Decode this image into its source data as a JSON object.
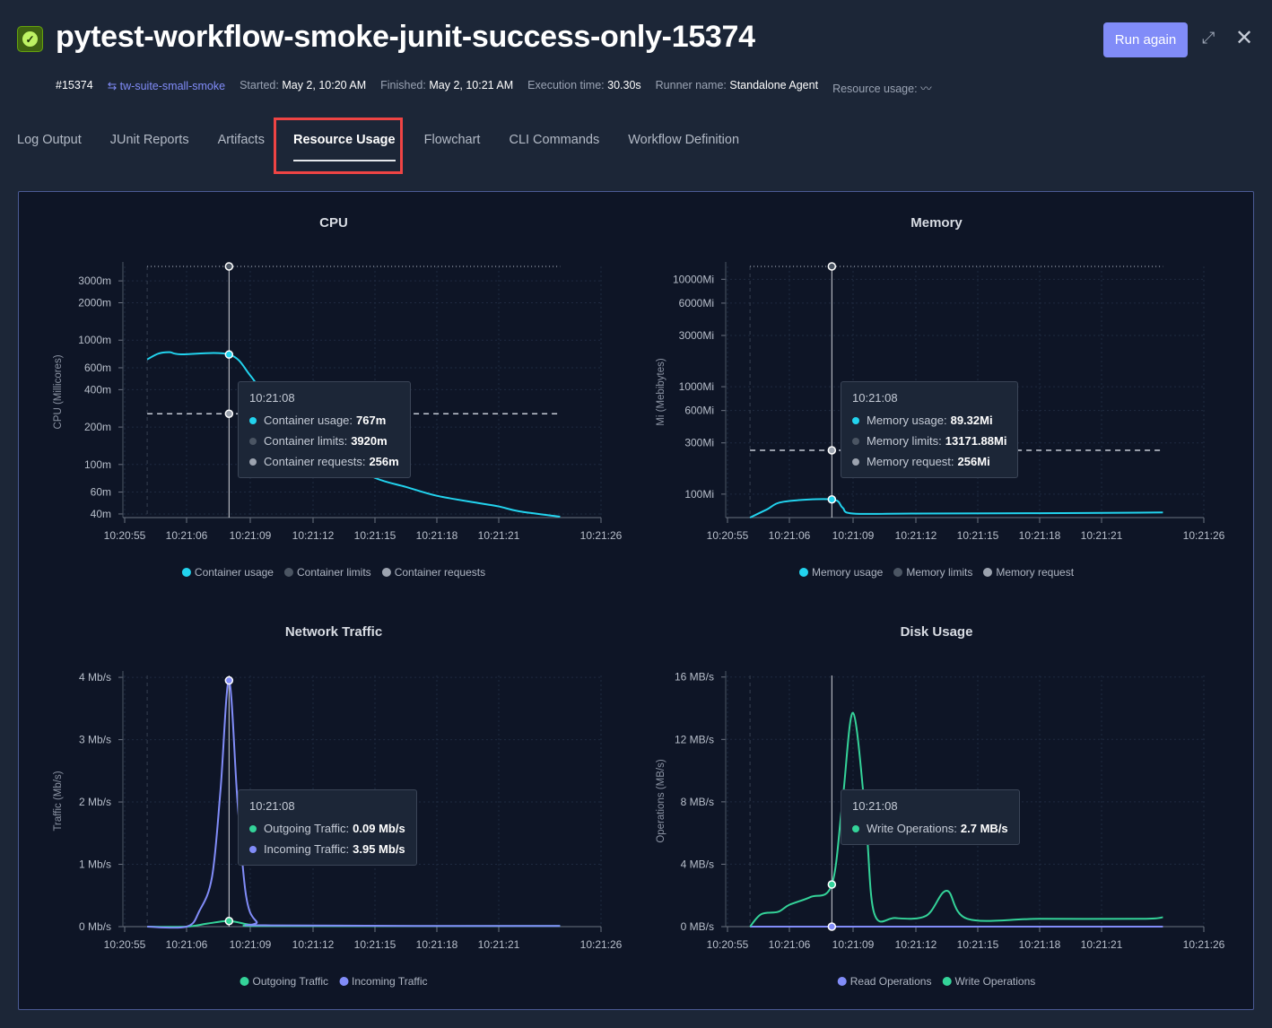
{
  "header": {
    "title": "pytest-workflow-smoke-junit-success-only-15374",
    "status_icon": "check-circle-icon",
    "run_again": "Run again",
    "run_number": "#15374",
    "workflow_link": "tw-suite-small-smoke",
    "started_label": "Started:",
    "started": "May 2, 10:20 AM",
    "finished_label": "Finished:",
    "finished": "May 2, 10:21 AM",
    "exec_label": "Execution time:",
    "exec": "30.30s",
    "runner_label": "Runner name:",
    "runner": "Standalone Agent",
    "resource_label": "Resource usage:"
  },
  "tabs": [
    {
      "label": "Log Output"
    },
    {
      "label": "JUnit Reports"
    },
    {
      "label": "Artifacts"
    },
    {
      "label": "Resource Usage",
      "active": true
    },
    {
      "label": "Flowchart"
    },
    {
      "label": "CLI Commands"
    },
    {
      "label": "Workflow Definition"
    }
  ],
  "colors": {
    "accent": "#818cf8",
    "cyan": "#22d3ee",
    "green": "#34d399",
    "highlight": "#ef4444"
  },
  "chart_data": [
    {
      "type": "line",
      "title": "CPU",
      "ylabel": "CPU (Millicores)",
      "yscale": "log",
      "ylim": [
        37.4,
        3920
      ],
      "yticks": [
        {
          "v": 3000,
          "l": "3000m"
        },
        {
          "v": 2000,
          "l": "2000m"
        },
        {
          "v": 1000,
          "l": "1000m"
        },
        {
          "v": 600,
          "l": "600m"
        },
        {
          "v": 400,
          "l": "400m"
        },
        {
          "v": 200,
          "l": "200m"
        },
        {
          "v": 100,
          "l": "100m"
        },
        {
          "v": 60,
          "l": "60m"
        },
        {
          "v": 40,
          "l": "40m"
        }
      ],
      "xticks": [
        "10:20:55",
        "10:21:06",
        "10:21:09",
        "10:21:12",
        "10:21:15",
        "10:21:18",
        "10:21:21",
        "10:21:26"
      ],
      "hover": "10:21:08",
      "series": [
        {
          "name": "Container usage",
          "color": "#22d3ee",
          "points": [
            [
              "10:20:59",
              700
            ],
            [
              "10:21:01",
              780
            ],
            [
              "10:21:03",
              800
            ],
            [
              "10:21:05",
              770
            ],
            [
              "10:21:08",
              767
            ],
            [
              "10:21:09",
              520
            ],
            [
              "10:21:10",
              300
            ],
            [
              "10:21:11",
              190
            ],
            [
              "10:21:13",
              115
            ],
            [
              "10:21:15",
              78
            ],
            [
              "10:21:16.5",
              66
            ],
            [
              "10:21:18",
              56
            ],
            [
              "10:21:20",
              49
            ],
            [
              "10:21:21",
              46
            ],
            [
              "10:21:22",
              42
            ],
            [
              "10:21:24",
              38
            ]
          ]
        }
      ],
      "refs": [
        {
          "name": "Container limits",
          "color": "#4b5563",
          "value": 3920,
          "style": "dotted"
        },
        {
          "name": "Container requests",
          "color": "#9ca3af",
          "value": 256,
          "style": "dashed"
        }
      ],
      "tooltip": {
        "time": "10:21:08",
        "rows": [
          {
            "label": "Container usage:",
            "value": "767m",
            "color": "#22d3ee"
          },
          {
            "label": "Container limits:",
            "value": "3920m",
            "color": "#4b5563"
          },
          {
            "label": "Container requests:",
            "value": "256m",
            "color": "#9ca3af"
          }
        ]
      }
    },
    {
      "type": "line",
      "title": "Memory",
      "ylabel": "Mi (Mebibytes)",
      "yscale": "log",
      "ylim": [
        60.5,
        13172
      ],
      "yticks": [
        {
          "v": 10000,
          "l": "10000Mi"
        },
        {
          "v": 6000,
          "l": "6000Mi"
        },
        {
          "v": 3000,
          "l": "3000Mi"
        },
        {
          "v": 1000,
          "l": "1000Mi"
        },
        {
          "v": 600,
          "l": "600Mi"
        },
        {
          "v": 300,
          "l": "300Mi"
        },
        {
          "v": 100,
          "l": "100Mi"
        }
      ],
      "xticks": [
        "10:20:55",
        "10:21:06",
        "10:21:09",
        "10:21:12",
        "10:21:15",
        "10:21:18",
        "10:21:21",
        "10:21:26"
      ],
      "hover": "10:21:08",
      "series": [
        {
          "name": "Memory usage",
          "color": "#22d3ee",
          "points": [
            [
              "10:20:59",
              60.5
            ],
            [
              "10:21:02",
              72
            ],
            [
              "10:21:05",
              85
            ],
            [
              "10:21:08",
              89.32
            ],
            [
              "10:21:08.5",
              75
            ],
            [
              "10:21:09",
              66
            ],
            [
              "10:21:12",
              66
            ],
            [
              "10:21:18",
              66.5
            ],
            [
              "10:21:24",
              67.5
            ]
          ]
        }
      ],
      "refs": [
        {
          "name": "Memory limits",
          "color": "#4b5563",
          "value": 13171.88,
          "style": "dotted"
        },
        {
          "name": "Memory request",
          "color": "#9ca3af",
          "value": 256,
          "style": "dashed"
        }
      ],
      "tooltip": {
        "time": "10:21:08",
        "rows": [
          {
            "label": "Memory usage:",
            "value": "89.32Mi",
            "color": "#22d3ee"
          },
          {
            "label": "Memory limits:",
            "value": "13171.88Mi",
            "color": "#4b5563"
          },
          {
            "label": "Memory request:",
            "value": "256Mi",
            "color": "#9ca3af"
          }
        ]
      }
    },
    {
      "type": "line",
      "title": "Network Traffic",
      "ylabel": "Traffic (Mb/s)",
      "yscale": "linear",
      "ylim": [
        0,
        4.03
      ],
      "yticks": [
        {
          "v": 4,
          "l": "4 Mb/s"
        },
        {
          "v": 3,
          "l": "3 Mb/s"
        },
        {
          "v": 2,
          "l": "2 Mb/s"
        },
        {
          "v": 1,
          "l": "1 Mb/s"
        },
        {
          "v": 0,
          "l": "0 Mb/s"
        }
      ],
      "xticks": [
        "10:20:55",
        "10:21:06",
        "10:21:09",
        "10:21:12",
        "10:21:15",
        "10:21:18",
        "10:21:21",
        "10:21:26"
      ],
      "hover": "10:21:08",
      "series": [
        {
          "name": "Outgoing Traffic",
          "color": "#34d399",
          "points": [
            [
              "10:20:59",
              0
            ],
            [
              "10:21:06",
              0
            ],
            [
              "10:21:07",
              0.05
            ],
            [
              "10:21:08",
              0.09
            ],
            [
              "10:21:09",
              0.03
            ],
            [
              "10:21:10",
              0.01
            ],
            [
              "10:21:24",
              0.01
            ]
          ]
        },
        {
          "name": "Incoming Traffic",
          "color": "#818cf8",
          "points": [
            [
              "10:20:59",
              0
            ],
            [
              "10:21:06",
              0
            ],
            [
              "10:21:06.6",
              0.25
            ],
            [
              "10:21:07.2",
              0.8
            ],
            [
              "10:21:07.6",
              2.2
            ],
            [
              "10:21:08",
              3.95
            ],
            [
              "10:21:08.4",
              2.0
            ],
            [
              "10:21:08.8",
              0.5
            ],
            [
              "10:21:09.3",
              0.08
            ],
            [
              "10:21:10",
              0.02
            ],
            [
              "10:21:24",
              0.01
            ]
          ]
        }
      ],
      "refs": [],
      "tooltip": {
        "time": "10:21:08",
        "rows": [
          {
            "label": "Outgoing Traffic:",
            "value": "0.09 Mb/s",
            "color": "#34d399"
          },
          {
            "label": "Incoming Traffic:",
            "value": "3.95 Mb/s",
            "color": "#818cf8"
          }
        ]
      }
    },
    {
      "type": "line",
      "title": "Disk Usage",
      "ylabel": "Operations (MB/s)",
      "yscale": "linear",
      "ylim": [
        0,
        16.1
      ],
      "yticks": [
        {
          "v": 16,
          "l": "16 MB/s"
        },
        {
          "v": 12,
          "l": "12 MB/s"
        },
        {
          "v": 8,
          "l": "8 MB/s"
        },
        {
          "v": 4,
          "l": "4 MB/s"
        },
        {
          "v": 0,
          "l": "0 MB/s"
        }
      ],
      "xticks": [
        "10:20:55",
        "10:21:06",
        "10:21:09",
        "10:21:12",
        "10:21:15",
        "10:21:18",
        "10:21:21",
        "10:21:26"
      ],
      "hover": "10:21:08",
      "series": [
        {
          "name": "Read Operations",
          "color": "#818cf8",
          "points": [
            [
              "10:20:59",
              0
            ],
            [
              "10:21:08",
              0
            ],
            [
              "10:21:24",
              0
            ]
          ]
        },
        {
          "name": "Write Operations",
          "color": "#34d399",
          "points": [
            [
              "10:20:59",
              0
            ],
            [
              "10:21:01",
              0.8
            ],
            [
              "10:21:04",
              0.95
            ],
            [
              "10:21:06",
              1.4
            ],
            [
              "10:21:07",
              1.9
            ],
            [
              "10:21:08",
              2.7
            ],
            [
              "10:21:08.5",
              8
            ],
            [
              "10:21:09",
              13.7
            ],
            [
              "10:21:09.6",
              7
            ],
            [
              "10:21:10",
              0.9
            ],
            [
              "10:21:11",
              0.55
            ],
            [
              "10:21:12.5",
              0.7
            ],
            [
              "10:21:13.5",
              2.3
            ],
            [
              "10:21:14.5",
              0.5
            ],
            [
              "10:21:18",
              0.5
            ],
            [
              "10:21:23",
              0.5
            ],
            [
              "10:21:24",
              0.6
            ]
          ]
        }
      ],
      "refs": [],
      "tooltip": {
        "time": "10:21:08",
        "rows": [
          {
            "label": "Write Operations:",
            "value": "2.7 MB/s",
            "color": "#34d399"
          }
        ]
      }
    }
  ]
}
